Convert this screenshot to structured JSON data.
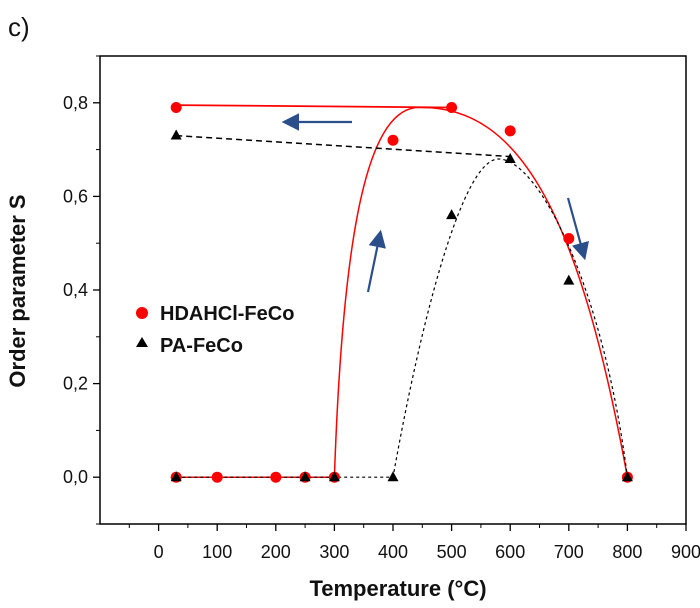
{
  "panel_label": "c)",
  "chart_data": {
    "type": "scatter",
    "xlabel": "Temperature (°C)",
    "ylabel": "Order parameter S",
    "xlim": [
      -100,
      900
    ],
    "ylim": [
      -0.1,
      0.9
    ],
    "xticks": [
      0,
      100,
      200,
      300,
      400,
      500,
      600,
      700,
      800,
      900
    ],
    "xtick_labels": [
      "0",
      "100",
      "200",
      "300",
      "400",
      "500",
      "600",
      "700",
      "800",
      "900"
    ],
    "yticks": [
      0.0,
      0.2,
      0.4,
      0.6,
      0.8
    ],
    "ytick_labels": [
      "0,0",
      "0,2",
      "0,4",
      "0,6",
      "0,8"
    ],
    "grid": false,
    "legend_position": "left-middle",
    "series": [
      {
        "name": "HDAHCl-FeCo",
        "marker": "circle",
        "color": "#ff0000",
        "line_style": "solid",
        "x": [
          30,
          100,
          200,
          250,
          300,
          400,
          500,
          600,
          700,
          800,
          30
        ],
        "y": [
          0.0,
          0.0,
          0.0,
          0.0,
          0.0,
          0.72,
          0.79,
          0.74,
          0.51,
          0.0,
          0.79
        ]
      },
      {
        "name": "PA-FeCo",
        "marker": "triangle",
        "color": "#000000",
        "line_style": "dashed",
        "x": [
          30,
          250,
          300,
          400,
          500,
          600,
          700,
          800,
          30
        ],
        "y": [
          0.0,
          0.0,
          0.0,
          0.0,
          0.56,
          0.68,
          0.42,
          0.0,
          0.73
        ]
      }
    ],
    "arrow_color": "#2b4f8a"
  }
}
